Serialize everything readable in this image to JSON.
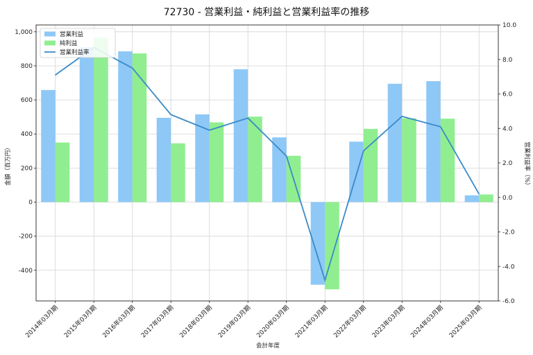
{
  "chart_data": {
    "type": "bar",
    "title": "72730 - 営業利益・純利益と営業利益率の推移",
    "xlabel": "会計年度",
    "ylabel": "金額（百万円）",
    "y2label": "営業利益率（%）",
    "categories": [
      "2014年03月期",
      "2015年03月期",
      "2016年03月期",
      "2017年03月期",
      "2018年03月期",
      "2019年03月期",
      "2020年03月期",
      "2021年03月期",
      "2022年03月期",
      "2023年03月期",
      "2024年03月期",
      "2025年03月期"
    ],
    "series": [
      {
        "name": "営業利益",
        "kind": "bar",
        "axis": "left",
        "color": "#8ec8f6",
        "values": [
          658,
          910,
          885,
          495,
          515,
          780,
          380,
          -485,
          355,
          695,
          710,
          40
        ]
      },
      {
        "name": "純利益",
        "kind": "bar",
        "axis": "left",
        "color": "#90ee90",
        "values": [
          350,
          965,
          873,
          345,
          468,
          502,
          272,
          -512,
          430,
          492,
          490,
          45
        ]
      },
      {
        "name": "営業利益率",
        "kind": "line",
        "axis": "right",
        "color": "#3a8ac8",
        "values": [
          7.1,
          8.7,
          7.5,
          4.8,
          3.9,
          4.6,
          2.4,
          -4.8,
          2.7,
          4.7,
          4.1,
          0.2
        ]
      }
    ],
    "ylim": [
      -580,
      1040
    ],
    "y2lim": [
      -6.0,
      10.0
    ],
    "yticks": [
      -400,
      -200,
      0,
      200,
      400,
      600,
      800,
      1000
    ],
    "ytick_labels": [
      "-400",
      "-200",
      "0",
      "200",
      "400",
      "600",
      "800",
      "1,000"
    ],
    "y2ticks": [
      -6.0,
      -4.0,
      -2.0,
      0.0,
      2.0,
      4.0,
      6.0,
      8.0,
      10.0
    ],
    "y2tick_labels": [
      "-6.0",
      "-4.0",
      "-2.0",
      "0.0",
      "2.0",
      "4.0",
      "6.0",
      "8.0",
      "10.0"
    ],
    "grid": true,
    "legend_position": "top-left"
  }
}
